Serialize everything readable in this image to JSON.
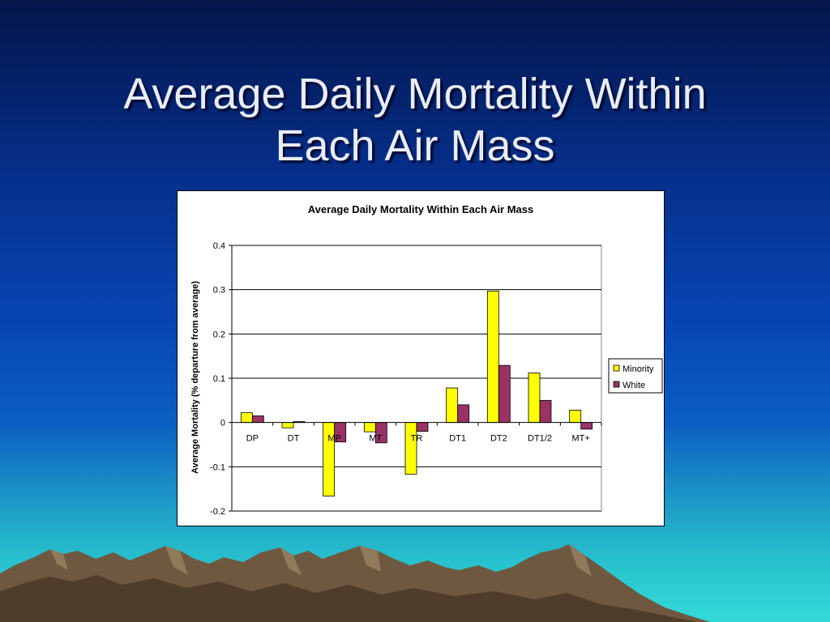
{
  "slide": {
    "title_line1": "Average Daily Mortality Within",
    "title_line2": "Each Air Mass"
  },
  "colors": {
    "background_top": "#04154a",
    "background_bottom": "#33d9d8",
    "mountain": "#7a6248",
    "minority": "#ffff00",
    "white": "#993366"
  },
  "chart_data": {
    "type": "bar",
    "title": "Average Daily Mortality Within Each Air Mass",
    "xlabel": "",
    "ylabel": "Average Mortality (% departure from average)",
    "categories": [
      "DP",
      "DT",
      "MP",
      "MT",
      "TR",
      "DT1",
      "DT2",
      "DT1/2",
      "MT+"
    ],
    "series": [
      {
        "name": "Minority",
        "color": "#ffff00",
        "values": [
          0.022,
          -0.012,
          -0.166,
          -0.021,
          -0.117,
          0.078,
          0.297,
          0.112,
          0.028
        ]
      },
      {
        "name": "White",
        "color": "#993366",
        "values": [
          0.015,
          0.002,
          -0.044,
          -0.046,
          -0.02,
          0.04,
          0.129,
          0.05,
          -0.015
        ]
      }
    ],
    "ylim": [
      -0.2,
      0.4
    ],
    "yticks": [
      "-0.2",
      "-0.1",
      "0",
      "0.1",
      "0.2",
      "0.3",
      "0.4"
    ],
    "grid": true,
    "legend_position": "right"
  }
}
